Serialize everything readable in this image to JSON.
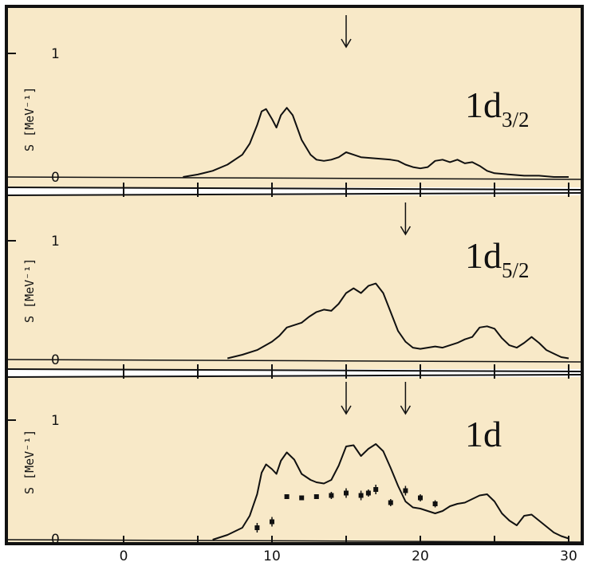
{
  "colors": {
    "panel_bg": "#f8e9c8",
    "ink": "#111111"
  },
  "chart_data": [
    {
      "type": "line",
      "label_main": "1d",
      "label_sub": "3/2",
      "ylabel": "S [MeV⁻¹]",
      "y_ticks": [
        "1",
        "0"
      ],
      "ylim": [
        0,
        1.35
      ],
      "xlim": [
        -4,
        30.5
      ],
      "arrows_x": [
        15
      ],
      "x": [
        4,
        5,
        6,
        7,
        8,
        8.5,
        9,
        9.3,
        9.6,
        10,
        10.3,
        10.6,
        11,
        11.4,
        12,
        12.6,
        13,
        13.5,
        14,
        14.5,
        15,
        15.5,
        16,
        17,
        18,
        18.5,
        19,
        19.5,
        20,
        20.5,
        21,
        21.5,
        22,
        22.5,
        23,
        23.5,
        24,
        24.5,
        25,
        26,
        27,
        28,
        29,
        30
      ],
      "y": [
        0,
        0.02,
        0.05,
        0.1,
        0.18,
        0.27,
        0.42,
        0.53,
        0.55,
        0.47,
        0.4,
        0.5,
        0.56,
        0.5,
        0.3,
        0.18,
        0.14,
        0.13,
        0.14,
        0.16,
        0.2,
        0.18,
        0.16,
        0.15,
        0.14,
        0.13,
        0.1,
        0.08,
        0.07,
        0.08,
        0.13,
        0.14,
        0.12,
        0.14,
        0.11,
        0.12,
        0.09,
        0.05,
        0.03,
        0.02,
        0.01,
        0.01,
        0,
        0
      ]
    },
    {
      "type": "line",
      "label_main": "1d",
      "label_sub": "5/2",
      "ylabel": "S [MeV⁻¹]",
      "y_ticks": [
        "1",
        "0"
      ],
      "ylim": [
        0,
        1.35
      ],
      "xlim": [
        -4,
        30.5
      ],
      "arrows_x": [
        19
      ],
      "x": [
        7,
        8,
        9,
        10,
        10.5,
        11,
        11.5,
        12,
        12.5,
        13,
        13.5,
        14,
        14.5,
        15,
        15.5,
        16,
        16.5,
        17,
        17.5,
        18,
        18.5,
        19,
        19.5,
        20,
        20.5,
        21,
        21.5,
        22,
        22.5,
        23,
        23.5,
        24,
        24.5,
        25,
        25.5,
        26,
        26.5,
        27,
        27.5,
        28,
        28.5,
        29,
        29.5,
        30
      ],
      "y": [
        0.01,
        0.04,
        0.08,
        0.15,
        0.2,
        0.27,
        0.29,
        0.31,
        0.36,
        0.4,
        0.42,
        0.41,
        0.47,
        0.56,
        0.6,
        0.56,
        0.62,
        0.64,
        0.56,
        0.4,
        0.24,
        0.15,
        0.1,
        0.09,
        0.1,
        0.11,
        0.1,
        0.12,
        0.14,
        0.17,
        0.19,
        0.27,
        0.28,
        0.26,
        0.18,
        0.12,
        0.1,
        0.14,
        0.19,
        0.14,
        0.08,
        0.05,
        0.02,
        0.01
      ]
    },
    {
      "type": "line",
      "label_main": "1d",
      "label_sub": "",
      "ylabel": "S [MeV⁻¹]",
      "y_ticks": [
        "1",
        "0"
      ],
      "ylim": [
        0,
        1.35
      ],
      "xlim": [
        -4,
        30.5
      ],
      "arrows_x": [
        15,
        19
      ],
      "x": [
        6,
        7,
        8,
        8.5,
        9,
        9.3,
        9.6,
        10,
        10.3,
        10.6,
        11,
        11.5,
        12,
        12.6,
        13,
        13.5,
        14,
        14.5,
        15,
        15.5,
        16,
        16.5,
        17,
        17.5,
        18,
        18.5,
        19,
        19.5,
        20,
        20.5,
        21,
        21.5,
        22,
        22.5,
        23,
        23.5,
        24,
        24.5,
        25,
        25.5,
        26,
        26.5,
        27,
        27.5,
        28,
        28.5,
        29,
        29.5,
        30
      ],
      "y": [
        0,
        0.04,
        0.1,
        0.2,
        0.38,
        0.56,
        0.63,
        0.59,
        0.55,
        0.66,
        0.73,
        0.67,
        0.55,
        0.5,
        0.48,
        0.47,
        0.5,
        0.62,
        0.78,
        0.79,
        0.7,
        0.76,
        0.8,
        0.74,
        0.6,
        0.45,
        0.32,
        0.27,
        0.26,
        0.24,
        0.22,
        0.24,
        0.28,
        0.3,
        0.31,
        0.34,
        0.37,
        0.38,
        0.32,
        0.22,
        0.16,
        0.12,
        0.2,
        0.21,
        0.16,
        0.11,
        0.06,
        0.03,
        0.01
      ],
      "points_x": [
        9,
        10,
        11,
        12,
        13,
        14,
        15,
        16,
        16.5,
        17,
        18,
        19,
        20,
        21
      ],
      "points_y": [
        0.1,
        0.15,
        0.36,
        0.35,
        0.36,
        0.37,
        0.39,
        0.37,
        0.39,
        0.42,
        0.31,
        0.41,
        0.35,
        0.3
      ],
      "points_err": [
        0.04,
        0.04,
        0.02,
        0.02,
        0.02,
        0.03,
        0.04,
        0.04,
        0.03,
        0.04,
        0.03,
        0.04,
        0.03,
        0.03
      ],
      "x_ticks": [
        "0",
        "10",
        "20",
        "30"
      ]
    }
  ]
}
